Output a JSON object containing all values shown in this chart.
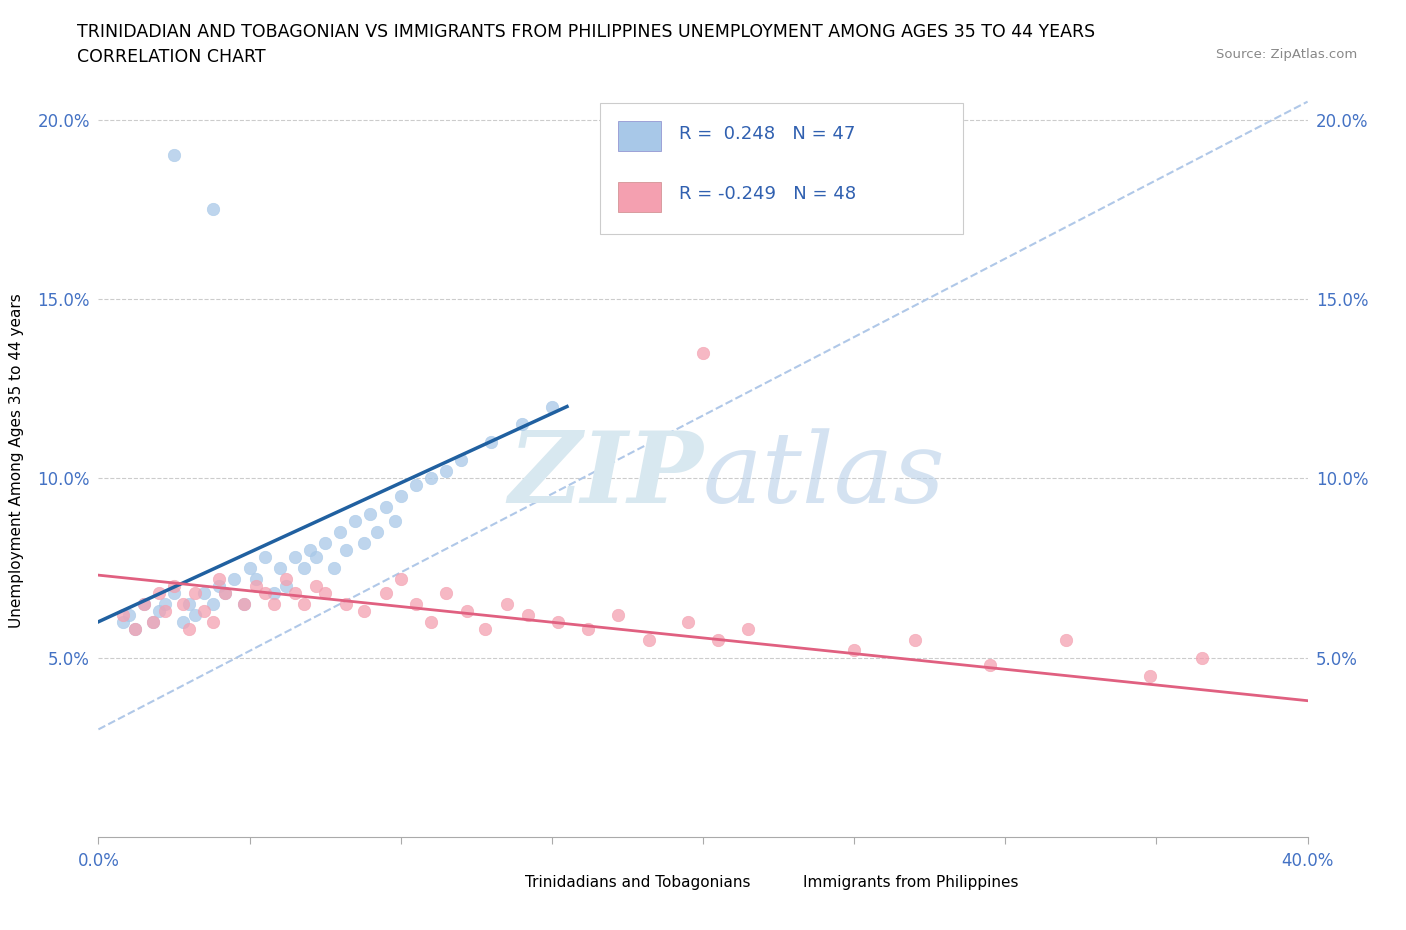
{
  "title_line1": "TRINIDADIAN AND TOBAGONIAN VS IMMIGRANTS FROM PHILIPPINES UNEMPLOYMENT AMONG AGES 35 TO 44 YEARS",
  "title_line2": "CORRELATION CHART",
  "source_text": "Source: ZipAtlas.com",
  "ylabel": "Unemployment Among Ages 35 to 44 years",
  "xlim": [
    0.0,
    0.4
  ],
  "ylim": [
    0.0,
    0.21
  ],
  "r_blue": 0.248,
  "n_blue": 47,
  "r_pink": -0.249,
  "n_pink": 48,
  "blue_color": "#a8c8e8",
  "pink_color": "#f4a0b0",
  "blue_line_color": "#2060a0",
  "pink_line_color": "#e06080",
  "dashed_line_color": "#b0c8e8",
  "watermark_color": "#d8e8f0",
  "blue_scatter_x": [
    0.008,
    0.01,
    0.012,
    0.015,
    0.018,
    0.02,
    0.022,
    0.025,
    0.028,
    0.03,
    0.032,
    0.035,
    0.038,
    0.04,
    0.042,
    0.045,
    0.048,
    0.05,
    0.052,
    0.055,
    0.058,
    0.06,
    0.062,
    0.065,
    0.068,
    0.07,
    0.072,
    0.075,
    0.078,
    0.08,
    0.082,
    0.085,
    0.088,
    0.09,
    0.092,
    0.095,
    0.098,
    0.1,
    0.105,
    0.11,
    0.115,
    0.12,
    0.13,
    0.14,
    0.15,
    0.038,
    0.025
  ],
  "blue_scatter_y": [
    0.06,
    0.062,
    0.058,
    0.065,
    0.06,
    0.063,
    0.065,
    0.068,
    0.06,
    0.065,
    0.062,
    0.068,
    0.065,
    0.07,
    0.068,
    0.072,
    0.065,
    0.075,
    0.072,
    0.078,
    0.068,
    0.075,
    0.07,
    0.078,
    0.075,
    0.08,
    0.078,
    0.082,
    0.075,
    0.085,
    0.08,
    0.088,
    0.082,
    0.09,
    0.085,
    0.092,
    0.088,
    0.095,
    0.098,
    0.1,
    0.102,
    0.105,
    0.11,
    0.115,
    0.12,
    0.175,
    0.19
  ],
  "pink_scatter_x": [
    0.008,
    0.012,
    0.015,
    0.018,
    0.02,
    0.022,
    0.025,
    0.028,
    0.03,
    0.032,
    0.035,
    0.038,
    0.04,
    0.042,
    0.048,
    0.052,
    0.055,
    0.058,
    0.062,
    0.065,
    0.068,
    0.072,
    0.075,
    0.082,
    0.088,
    0.095,
    0.1,
    0.105,
    0.11,
    0.115,
    0.122,
    0.128,
    0.135,
    0.142,
    0.152,
    0.162,
    0.172,
    0.182,
    0.195,
    0.205,
    0.215,
    0.25,
    0.27,
    0.295,
    0.32,
    0.348,
    0.365,
    0.2
  ],
  "pink_scatter_y": [
    0.062,
    0.058,
    0.065,
    0.06,
    0.068,
    0.063,
    0.07,
    0.065,
    0.058,
    0.068,
    0.063,
    0.06,
    0.072,
    0.068,
    0.065,
    0.07,
    0.068,
    0.065,
    0.072,
    0.068,
    0.065,
    0.07,
    0.068,
    0.065,
    0.063,
    0.068,
    0.072,
    0.065,
    0.06,
    0.068,
    0.063,
    0.058,
    0.065,
    0.062,
    0.06,
    0.058,
    0.062,
    0.055,
    0.06,
    0.055,
    0.058,
    0.052,
    0.055,
    0.048,
    0.055,
    0.045,
    0.05,
    0.135
  ],
  "blue_line_x": [
    0.0,
    0.155
  ],
  "blue_line_y": [
    0.06,
    0.12
  ],
  "dashed_line_x": [
    0.0,
    0.4
  ],
  "dashed_line_y": [
    0.03,
    0.205
  ],
  "pink_line_x": [
    0.0,
    0.4
  ],
  "pink_line_y": [
    0.073,
    0.038
  ]
}
